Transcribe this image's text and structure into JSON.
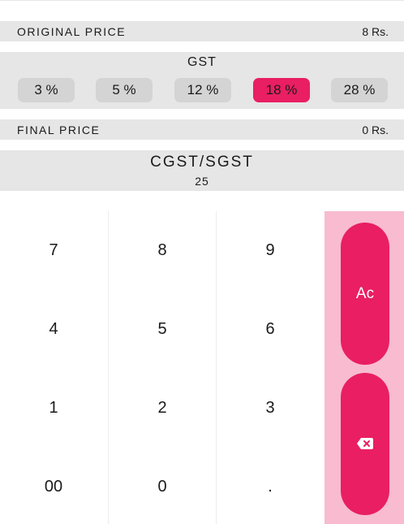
{
  "original_price": {
    "label": "ORIGINAL PRICE",
    "value": "8 Rs."
  },
  "gst": {
    "title": "GST",
    "rates": [
      "3 %",
      "5 %",
      "12 %",
      "18 %",
      "28 %"
    ],
    "selected": "18 %",
    "accent_color": "#e91e63"
  },
  "final_price": {
    "label": "FINAL PRICE",
    "value": "0 Rs."
  },
  "cgst_sgst": {
    "title": "CGST/SGST",
    "value": "25"
  },
  "keypad": {
    "keys": [
      "7",
      "8",
      "9",
      "4",
      "5",
      "6",
      "1",
      "2",
      "3",
      "00",
      "0",
      "."
    ]
  },
  "side_buttons": {
    "clear_label": "Ac",
    "backspace_icon": "backspace-icon"
  },
  "colors": {
    "panel": "#e6e6e6",
    "side_background": "#f8bbd0",
    "accent": "#e91e63"
  }
}
